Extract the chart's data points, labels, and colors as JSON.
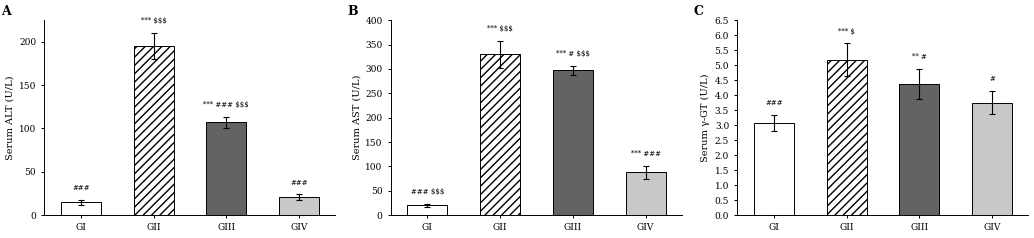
{
  "panels": [
    {
      "label": "A",
      "ylabel": "Serum ALT (U/L)",
      "ylim": [
        0,
        225
      ],
      "yticks": [
        0,
        50,
        100,
        150,
        200
      ],
      "categories": [
        "GI",
        "GII",
        "GIII",
        "GIV"
      ],
      "values": [
        15,
        195,
        107,
        21
      ],
      "errors": [
        3,
        15,
        6,
        3
      ],
      "annotations": [
        "###",
        "*** $$$",
        "*** ### $$$",
        "###"
      ],
      "ann_offsets": [
        0.04,
        0.04,
        0.04,
        0.04
      ],
      "bar_colors": [
        "#ffffff",
        "#ffffff",
        "#636363",
        "#c8c8c8"
      ],
      "hatch": [
        null,
        "////",
        null,
        null
      ],
      "bar_edgecolor": "black"
    },
    {
      "label": "B",
      "ylabel": "Serum AST (U/L)",
      "ylim": [
        0,
        400
      ],
      "yticks": [
        0,
        50,
        100,
        150,
        200,
        250,
        300,
        350,
        400
      ],
      "categories": [
        "GI",
        "GII",
        "GIII",
        "GIV"
      ],
      "values": [
        20,
        330,
        297,
        88
      ],
      "errors": [
        3,
        28,
        9,
        13
      ],
      "annotations": [
        "### $$$",
        "*** $$$",
        "*** # $$$",
        "*** ###"
      ],
      "ann_offsets": [
        0.04,
        0.04,
        0.04,
        0.04
      ],
      "bar_colors": [
        "#ffffff",
        "#ffffff",
        "#636363",
        "#c8c8c8"
      ],
      "hatch": [
        null,
        "////",
        null,
        null
      ],
      "bar_edgecolor": "black"
    },
    {
      "label": "C",
      "ylabel": "Serum γ-GT (U/L)",
      "ylim": [
        0.0,
        6.5
      ],
      "yticks": [
        0.0,
        0.5,
        1.0,
        1.5,
        2.0,
        2.5,
        3.0,
        3.5,
        4.0,
        4.5,
        5.0,
        5.5,
        6.0,
        6.5
      ],
      "categories": [
        "GI",
        "GII",
        "GIII",
        "GIV"
      ],
      "values": [
        3.07,
        5.18,
        4.38,
        3.75
      ],
      "errors": [
        0.28,
        0.55,
        0.5,
        0.38
      ],
      "annotations": [
        "###",
        "*** $",
        "** #",
        "#"
      ],
      "ann_offsets": [
        0.04,
        0.04,
        0.04,
        0.04
      ],
      "bar_colors": [
        "#ffffff",
        "#ffffff",
        "#636363",
        "#c8c8c8"
      ],
      "hatch": [
        null,
        "////",
        null,
        null
      ],
      "bar_edgecolor": "black"
    }
  ],
  "figure_width": 10.34,
  "figure_height": 2.38,
  "dpi": 100
}
